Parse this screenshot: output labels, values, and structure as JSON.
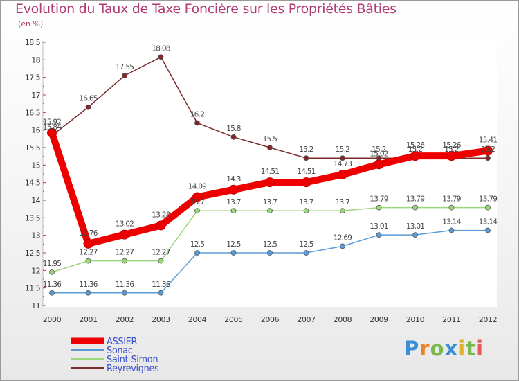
{
  "chart_data": {
    "type": "line",
    "title": "Evolution du Taux de Taxe Foncière sur les Propriétés Bâties",
    "subtitle": "(en %)",
    "x": [
      "2000",
      "2001",
      "2002",
      "2003",
      "2004",
      "2005",
      "2006",
      "2007",
      "2008",
      "2009",
      "2010",
      "2011",
      "2012"
    ],
    "ylim": [
      11,
      18.5
    ],
    "yticks": [
      "11",
      "11.5",
      "12",
      "12.5",
      "13",
      "13.5",
      "14",
      "14.5",
      "15",
      "15.5",
      "16",
      "16.5",
      "17",
      "17.5",
      "18",
      "18.5"
    ],
    "series": [
      {
        "name": "ASSIER",
        "color": "#ee0000",
        "values": [
          15.92,
          12.76,
          13.02,
          13.28,
          14.09,
          14.3,
          14.51,
          14.51,
          14.73,
          15.02,
          15.26,
          15.26,
          15.41
        ],
        "labels": [
          "15.92",
          "12.76",
          "13.02",
          "13.28",
          "14.09",
          "14.3",
          "14.51",
          "14.51",
          "14.73",
          "15.02",
          "15.26",
          "15.26",
          "15.41"
        ]
      },
      {
        "name": "Sonac",
        "color": "#5b9bd5",
        "values": [
          11.36,
          11.36,
          11.36,
          11.36,
          12.5,
          12.5,
          12.5,
          12.5,
          12.69,
          13.01,
          13.01,
          13.14,
          13.14
        ],
        "labels": [
          "11.36",
          "11.36",
          "11.36",
          "11.36",
          "12.5",
          "12.5",
          "12.5",
          "12.5",
          "12.69",
          "13.01",
          "13.01",
          "13.14",
          "13.14"
        ]
      },
      {
        "name": "Saint-Simon",
        "color": "#9cd67a",
        "values": [
          11.95,
          12.27,
          12.27,
          12.27,
          13.7,
          13.7,
          13.7,
          13.7,
          13.7,
          13.79,
          13.79,
          13.79,
          13.79
        ],
        "labels": [
          "11.95",
          "12.27",
          "12.27",
          "12.27",
          "13.7",
          "13.7",
          "13.7",
          "13.7",
          "13.7",
          "13.79",
          "13.79",
          "13.79",
          "13.79"
        ]
      },
      {
        "name": "Reyrevignes",
        "color": "#7a2a2a",
        "values": [
          15.84,
          16.65,
          17.55,
          18.08,
          16.2,
          15.8,
          15.5,
          15.2,
          15.2,
          15.2,
          15.2,
          15.2,
          15.2
        ],
        "labels": [
          "15.84",
          "16.65",
          "17.55",
          "18.08",
          "16.2",
          "15.8",
          "15.5",
          "15.2",
          "15.2",
          "15.2",
          "15.2",
          "15.2",
          "15.2"
        ]
      }
    ],
    "legend_position": "bottom-left"
  },
  "logo": {
    "p": "P",
    "r": "r",
    "o": "o",
    "x": "x",
    "i": "i",
    "t": "t",
    "i2": "i"
  }
}
